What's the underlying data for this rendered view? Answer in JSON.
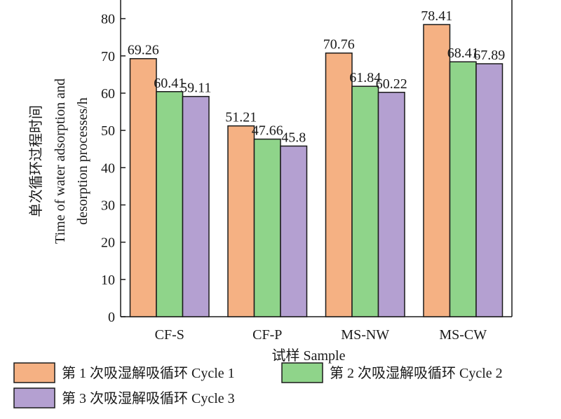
{
  "chart_data": {
    "type": "bar",
    "title": "",
    "xlabel": "试样 Sample",
    "ylabel_lines": [
      "单次循环过程时间",
      "Time of water adsorption and",
      "desorption processes/h"
    ],
    "categories": [
      "CF-S",
      "CF-P",
      "MS-NW",
      "MS-CW"
    ],
    "series": [
      {
        "name": "第 1 次吸湿解吸循环 Cycle 1",
        "values": [
          69.26,
          51.21,
          70.76,
          78.41
        ],
        "labels": [
          "69.26",
          "51.21",
          "70.76",
          "78.41"
        ],
        "color": "#f5b183"
      },
      {
        "name": "第 2 次吸湿解吸循环 Cycle 2",
        "values": [
          60.41,
          47.66,
          61.84,
          68.41
        ],
        "labels": [
          "60.41",
          "47.66",
          "61.84",
          "68.41"
        ],
        "color": "#8fd48a"
      },
      {
        "name": "第 3 次吸湿解吸循环 Cycle 3",
        "values": [
          59.11,
          45.8,
          60.22,
          67.89
        ],
        "labels": [
          "59.11",
          "45.8",
          "60.22",
          "67.89"
        ],
        "color": "#b4a0d1"
      }
    ],
    "yticks": [
      "0",
      "10",
      "20",
      "30",
      "40",
      "50",
      "60",
      "70",
      "80"
    ],
    "ylim": [
      0,
      85
    ],
    "grid": false,
    "legend_position": "bottom"
  }
}
